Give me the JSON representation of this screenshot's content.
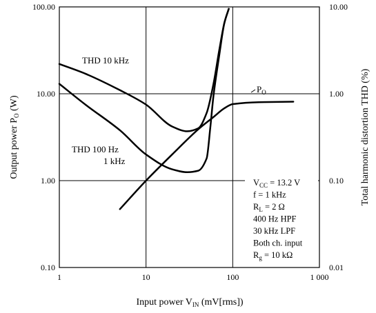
{
  "chart_data": {
    "type": "line",
    "xlabel": {
      "main": "Input power  V",
      "sub": "IN",
      "tail": "  (mV[rms])"
    },
    "ylabel_left": {
      "main": "Output power  P",
      "sub": "O",
      "tail": "  (W)"
    },
    "ylabel_right": "Total harmonic distortion  THD  (%)",
    "x_scale": "log",
    "xlim": [
      1,
      1000
    ],
    "x_ticks": [
      "1",
      "10",
      "100",
      "1 000"
    ],
    "y_left_scale": "log",
    "ylim_left": [
      0.1,
      100
    ],
    "y_left_ticks": [
      "0.10",
      "1.00",
      "10.00",
      "100.00"
    ],
    "y_right_scale": "log",
    "ylim_right": [
      0.01,
      10
    ],
    "y_right_ticks": [
      "0.01",
      "0.10",
      "1.00",
      "10.00"
    ],
    "grid": true,
    "series": [
      {
        "name": "P",
        "label": {
          "main": "P",
          "sub": "O"
        },
        "axis": "left",
        "x": [
          5,
          10,
          20,
          40,
          60,
          80,
          100,
          200,
          500
        ],
        "y": [
          0.47,
          1.0,
          2.0,
          3.9,
          5.4,
          6.8,
          7.6,
          8.0,
          8.1
        ]
      },
      {
        "name": "THD 10 kHz",
        "label": {
          "main": "THD 10 kHz"
        },
        "axis": "right",
        "x": [
          1,
          2,
          5,
          10,
          20,
          30,
          40,
          50,
          60,
          70,
          80,
          90
        ],
        "y": [
          2.2,
          1.7,
          1.1,
          0.75,
          0.42,
          0.37,
          0.4,
          0.6,
          1.3,
          3.2,
          6.5,
          9.5
        ]
      },
      {
        "name": "THD 100 Hz / 1 kHz",
        "label": {
          "main": "THD 100 Hz",
          "line2": "1 kHz"
        },
        "axis": "right",
        "x": [
          1,
          2,
          5,
          10,
          20,
          30,
          40,
          50,
          55,
          60,
          70,
          80,
          90
        ],
        "y": [
          1.3,
          0.75,
          0.38,
          0.2,
          0.135,
          0.125,
          0.13,
          0.18,
          0.4,
          0.95,
          2.8,
          6.5,
          9.5
        ]
      }
    ],
    "conditions": [
      {
        "main": "V",
        "sub": "CC",
        "tail": " = 13.2 V"
      },
      {
        "main": "f = 1 kHz"
      },
      {
        "main": "R",
        "sub": "L",
        "tail": " = 2 Ω"
      },
      {
        "main": "400 Hz HPF"
      },
      {
        "main": "30 kHz LPF"
      },
      {
        "main": "Both ch. input"
      },
      {
        "main": "R",
        "sub": "g",
        "tail": " = 10 kΩ"
      }
    ]
  }
}
